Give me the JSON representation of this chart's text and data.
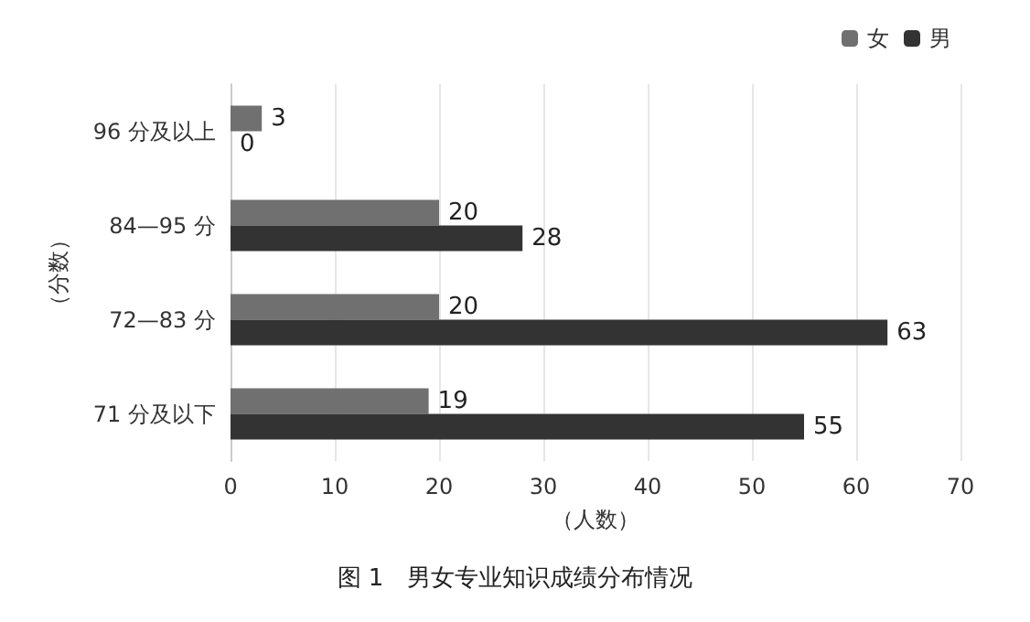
{
  "chart_data": {
    "type": "bar",
    "orientation": "horizontal",
    "title": "图 1　男女专业知识成绩分布情况",
    "xlabel": "（人数）",
    "ylabel": "（分数）",
    "categories": [
      "96 分及以上",
      "84—95 分",
      "72—83 分",
      "71 分及以下"
    ],
    "series": [
      {
        "name": "女",
        "color": "#707070",
        "values": [
          3,
          20,
          20,
          19
        ]
      },
      {
        "name": "男",
        "color": "#333333",
        "values": [
          0,
          28,
          63,
          55
        ]
      }
    ],
    "xlim": [
      0,
      70
    ],
    "xticks": [
      0,
      10,
      20,
      30,
      40,
      50,
      60,
      70
    ],
    "grid": "x",
    "legend": "top right",
    "data_labels": true
  }
}
